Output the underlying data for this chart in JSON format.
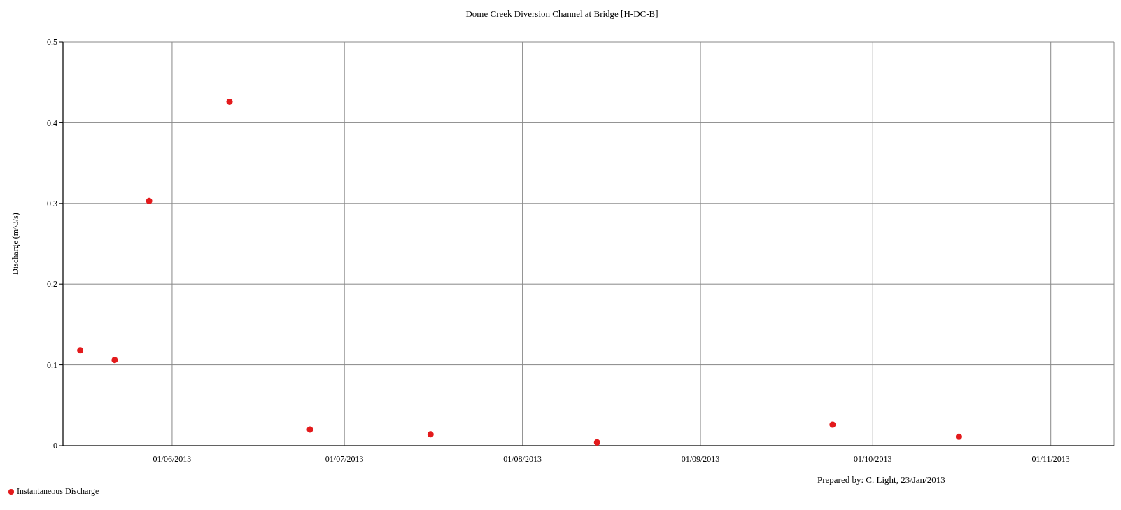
{
  "chart_data": {
    "type": "scatter",
    "title": "Dome Creek Diversion Channel at Bridge [H-DC-B]",
    "ylabel": "Discharge (m^3/s)",
    "x": [
      "2013-05-16",
      "2013-05-22",
      "2013-05-28",
      "2013-06-11",
      "2013-06-25",
      "2013-07-16",
      "2013-08-14",
      "2013-09-24",
      "2013-10-16"
    ],
    "series": [
      {
        "name": "Instantaneous Discharge",
        "color": "#e31a1c",
        "values": [
          0.118,
          0.106,
          0.303,
          0.426,
          0.02,
          0.014,
          0.004,
          0.026,
          0.011
        ]
      }
    ],
    "xlim": [
      "2013-05-13",
      "2013-11-12"
    ],
    "xticks": [
      {
        "value": "2013-06-01",
        "label": "01/06/2013"
      },
      {
        "value": "2013-07-01",
        "label": "01/07/2013"
      },
      {
        "value": "2013-08-01",
        "label": "01/08/2013"
      },
      {
        "value": "2013-09-01",
        "label": "01/09/2013"
      },
      {
        "value": "2013-10-01",
        "label": "01/10/2013"
      },
      {
        "value": "2013-11-01",
        "label": "01/11/2013"
      }
    ],
    "ylim": [
      0,
      0.5
    ],
    "yticks": [
      0,
      0.1,
      0.2,
      0.3,
      0.4,
      0.5
    ],
    "grid": true,
    "legend": "bottom left",
    "marker": "circle",
    "annotations": [
      "Prepared by: C. Light, 23/Jan/2013"
    ]
  }
}
